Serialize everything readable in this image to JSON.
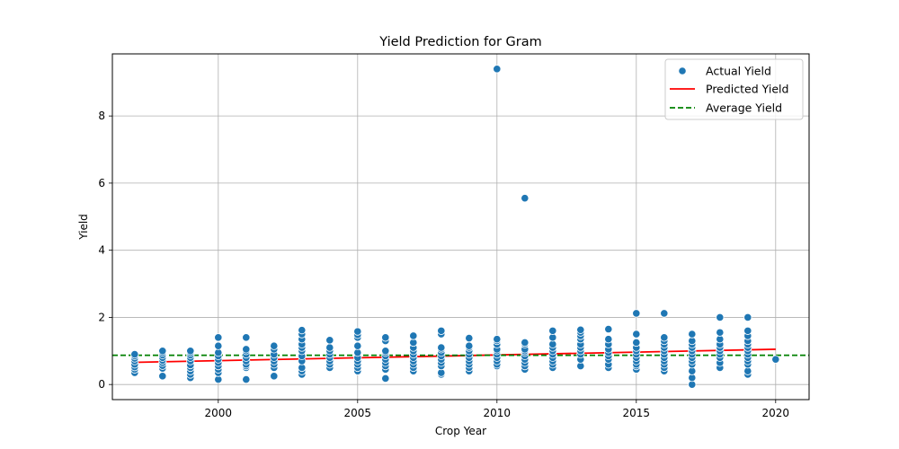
{
  "chart_data": {
    "type": "scatter",
    "title": "Yield Prediction for Gram",
    "xlabel": "Crop Year",
    "ylabel": "Yield",
    "xlim": [
      1996.2,
      2021.2
    ],
    "ylim": [
      -0.45,
      9.85
    ],
    "x_ticks": [
      2000,
      2005,
      2010,
      2015,
      2020
    ],
    "y_ticks": [
      0,
      2,
      4,
      6,
      8
    ],
    "grid": true,
    "legend_position": "top-right",
    "series": [
      {
        "name": "Actual Yield",
        "kind": "scatter",
        "color": "#1f77b4",
        "points": [
          [
            1997,
            0.35
          ],
          [
            1997,
            0.45
          ],
          [
            1997,
            0.52
          ],
          [
            1997,
            0.6
          ],
          [
            1997,
            0.7
          ],
          [
            1997,
            0.78
          ],
          [
            1997,
            0.85
          ],
          [
            1997,
            0.9
          ],
          [
            1998,
            0.25
          ],
          [
            1998,
            0.48
          ],
          [
            1998,
            0.56
          ],
          [
            1998,
            0.65
          ],
          [
            1998,
            0.72
          ],
          [
            1998,
            0.8
          ],
          [
            1998,
            0.88
          ],
          [
            1998,
            0.95
          ],
          [
            1998,
            1.0
          ],
          [
            1999,
            0.2
          ],
          [
            1999,
            0.3
          ],
          [
            1999,
            0.4
          ],
          [
            1999,
            0.5
          ],
          [
            1999,
            0.58
          ],
          [
            1999,
            0.7
          ],
          [
            1999,
            0.8
          ],
          [
            1999,
            0.88
          ],
          [
            1999,
            0.95
          ],
          [
            1999,
            1.0
          ],
          [
            2000,
            0.15
          ],
          [
            2000,
            0.35
          ],
          [
            2000,
            0.45
          ],
          [
            2000,
            0.55
          ],
          [
            2000,
            0.65
          ],
          [
            2000,
            0.75
          ],
          [
            2000,
            0.85
          ],
          [
            2000,
            0.95
          ],
          [
            2000,
            1.15
          ],
          [
            2000,
            1.4
          ],
          [
            2001,
            0.15
          ],
          [
            2001,
            0.5
          ],
          [
            2001,
            0.55
          ],
          [
            2001,
            0.6
          ],
          [
            2001,
            0.7
          ],
          [
            2001,
            0.8
          ],
          [
            2001,
            0.9
          ],
          [
            2001,
            1.0
          ],
          [
            2001,
            1.05
          ],
          [
            2001,
            1.4
          ],
          [
            2002,
            0.25
          ],
          [
            2002,
            0.5
          ],
          [
            2002,
            0.6
          ],
          [
            2002,
            0.7
          ],
          [
            2002,
            0.8
          ],
          [
            2002,
            0.9
          ],
          [
            2002,
            1.05
          ],
          [
            2002,
            1.15
          ],
          [
            2003,
            0.3
          ],
          [
            2003,
            0.4
          ],
          [
            2003,
            0.5
          ],
          [
            2003,
            0.7
          ],
          [
            2003,
            0.85
          ],
          [
            2003,
            1.0
          ],
          [
            2003,
            1.1
          ],
          [
            2003,
            1.2
          ],
          [
            2003,
            1.35
          ],
          [
            2003,
            1.5
          ],
          [
            2003,
            1.62
          ],
          [
            2004,
            0.5
          ],
          [
            2004,
            0.6
          ],
          [
            2004,
            0.7
          ],
          [
            2004,
            0.8
          ],
          [
            2004,
            0.9
          ],
          [
            2004,
            1.0
          ],
          [
            2004,
            1.1
          ],
          [
            2004,
            1.32
          ],
          [
            2005,
            0.4
          ],
          [
            2005,
            0.5
          ],
          [
            2005,
            0.6
          ],
          [
            2005,
            0.7
          ],
          [
            2005,
            0.8
          ],
          [
            2005,
            0.95
          ],
          [
            2005,
            1.15
          ],
          [
            2005,
            1.4
          ],
          [
            2005,
            1.48
          ],
          [
            2005,
            1.58
          ],
          [
            2006,
            0.18
          ],
          [
            2006,
            0.45
          ],
          [
            2006,
            0.55
          ],
          [
            2006,
            0.65
          ],
          [
            2006,
            0.75
          ],
          [
            2006,
            0.85
          ],
          [
            2006,
            0.95
          ],
          [
            2006,
            1.0
          ],
          [
            2006,
            1.3
          ],
          [
            2006,
            1.4
          ],
          [
            2007,
            0.4
          ],
          [
            2007,
            0.5
          ],
          [
            2007,
            0.6
          ],
          [
            2007,
            0.7
          ],
          [
            2007,
            0.8
          ],
          [
            2007,
            0.9
          ],
          [
            2007,
            1.0
          ],
          [
            2007,
            1.1
          ],
          [
            2007,
            1.25
          ],
          [
            2007,
            1.45
          ],
          [
            2008,
            0.3
          ],
          [
            2008,
            0.35
          ],
          [
            2008,
            0.55
          ],
          [
            2008,
            0.65
          ],
          [
            2008,
            0.75
          ],
          [
            2008,
            0.85
          ],
          [
            2008,
            0.95
          ],
          [
            2008,
            1.05
          ],
          [
            2008,
            1.1
          ],
          [
            2008,
            1.5
          ],
          [
            2008,
            1.6
          ],
          [
            2009,
            0.4
          ],
          [
            2009,
            0.5
          ],
          [
            2009,
            0.6
          ],
          [
            2009,
            0.7
          ],
          [
            2009,
            0.8
          ],
          [
            2009,
            0.9
          ],
          [
            2009,
            1.0
          ],
          [
            2009,
            1.1
          ],
          [
            2009,
            1.15
          ],
          [
            2009,
            1.38
          ],
          [
            2010,
            0.55
          ],
          [
            2010,
            0.6
          ],
          [
            2010,
            0.7
          ],
          [
            2010,
            0.8
          ],
          [
            2010,
            0.9
          ],
          [
            2010,
            1.0
          ],
          [
            2010,
            1.05
          ],
          [
            2010,
            1.2
          ],
          [
            2010,
            1.3
          ],
          [
            2010,
            1.35
          ],
          [
            2010,
            9.4
          ],
          [
            2011,
            0.45
          ],
          [
            2011,
            0.55
          ],
          [
            2011,
            0.65
          ],
          [
            2011,
            0.75
          ],
          [
            2011,
            0.85
          ],
          [
            2011,
            0.95
          ],
          [
            2011,
            1.0
          ],
          [
            2011,
            1.05
          ],
          [
            2011,
            1.2
          ],
          [
            2011,
            1.25
          ],
          [
            2011,
            5.55
          ],
          [
            2012,
            0.5
          ],
          [
            2012,
            0.6
          ],
          [
            2012,
            0.7
          ],
          [
            2012,
            0.8
          ],
          [
            2012,
            0.9
          ],
          [
            2012,
            1.0
          ],
          [
            2012,
            1.1
          ],
          [
            2012,
            1.2
          ],
          [
            2012,
            1.4
          ],
          [
            2012,
            1.6
          ],
          [
            2013,
            0.55
          ],
          [
            2013,
            0.75
          ],
          [
            2013,
            0.9
          ],
          [
            2013,
            1.0
          ],
          [
            2013,
            1.1
          ],
          [
            2013,
            1.2
          ],
          [
            2013,
            1.35
          ],
          [
            2013,
            1.45
          ],
          [
            2013,
            1.55
          ],
          [
            2013,
            1.63
          ],
          [
            2014,
            0.5
          ],
          [
            2014,
            0.6
          ],
          [
            2014,
            0.75
          ],
          [
            2014,
            0.85
          ],
          [
            2014,
            0.95
          ],
          [
            2014,
            1.05
          ],
          [
            2014,
            1.2
          ],
          [
            2014,
            1.35
          ],
          [
            2014,
            1.65
          ],
          [
            2015,
            0.45
          ],
          [
            2015,
            0.55
          ],
          [
            2015,
            0.6
          ],
          [
            2015,
            0.7
          ],
          [
            2015,
            0.8
          ],
          [
            2015,
            0.9
          ],
          [
            2015,
            1.0
          ],
          [
            2015,
            1.1
          ],
          [
            2015,
            1.25
          ],
          [
            2015,
            1.5
          ],
          [
            2015,
            2.12
          ],
          [
            2016,
            0.4
          ],
          [
            2016,
            0.5
          ],
          [
            2016,
            0.6
          ],
          [
            2016,
            0.7
          ],
          [
            2016,
            0.8
          ],
          [
            2016,
            0.9
          ],
          [
            2016,
            1.0
          ],
          [
            2016,
            1.1
          ],
          [
            2016,
            1.2
          ],
          [
            2016,
            1.3
          ],
          [
            2016,
            1.4
          ],
          [
            2016,
            2.12
          ],
          [
            2017,
            0.0
          ],
          [
            2017,
            0.2
          ],
          [
            2017,
            0.4
          ],
          [
            2017,
            0.6
          ],
          [
            2017,
            0.7
          ],
          [
            2017,
            0.8
          ],
          [
            2017,
            0.9
          ],
          [
            2017,
            1.0
          ],
          [
            2017,
            1.1
          ],
          [
            2017,
            1.2
          ],
          [
            2017,
            1.3
          ],
          [
            2017,
            1.5
          ],
          [
            2018,
            0.5
          ],
          [
            2018,
            0.65
          ],
          [
            2018,
            0.8
          ],
          [
            2018,
            0.9
          ],
          [
            2018,
            1.0
          ],
          [
            2018,
            1.1
          ],
          [
            2018,
            1.2
          ],
          [
            2018,
            1.35
          ],
          [
            2018,
            1.55
          ],
          [
            2018,
            2.0
          ],
          [
            2019,
            0.3
          ],
          [
            2019,
            0.4
          ],
          [
            2019,
            0.6
          ],
          [
            2019,
            0.7
          ],
          [
            2019,
            0.8
          ],
          [
            2019,
            0.9
          ],
          [
            2019,
            1.0
          ],
          [
            2019,
            1.1
          ],
          [
            2019,
            1.2
          ],
          [
            2019,
            1.3
          ],
          [
            2019,
            1.45
          ],
          [
            2019,
            1.6
          ],
          [
            2019,
            2.0
          ],
          [
            2020,
            0.75
          ]
        ]
      },
      {
        "name": "Predicted Yield",
        "kind": "line",
        "color": "#ff0000",
        "points": [
          [
            1997,
            0.66
          ],
          [
            2020,
            1.05
          ]
        ]
      },
      {
        "name": "Average Yield",
        "kind": "hline",
        "color": "#008000",
        "y": 0.87
      }
    ]
  }
}
